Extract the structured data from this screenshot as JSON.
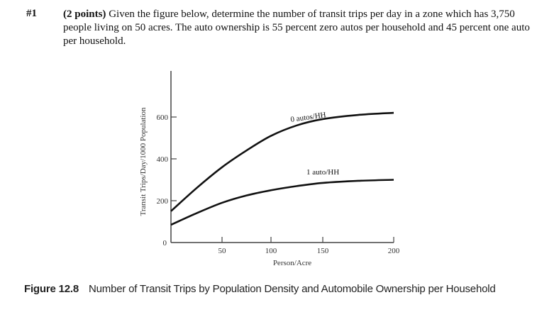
{
  "question": {
    "number": "#1",
    "points": "(2 points)",
    "text": " Given the figure below, determine the number of transit trips per day in a zone which has 3,750 people living on 50 acres.  The auto ownership is 55 percent zero autos per household and 45 percent one auto per household."
  },
  "caption": {
    "figure_label": "Figure 12.8",
    "text": "Number of Transit Trips by Population Density and Automobile Ownership per Household"
  },
  "chart_data": {
    "type": "line",
    "title": "Number of Transit Trips by Population Density and Automobile Ownership per Household",
    "xlabel": "Person/Acre",
    "ylabel": "Transit Trips/Day/1000 Population",
    "xlim": [
      0,
      200
    ],
    "ylim": [
      0,
      700
    ],
    "xticks": [
      50,
      100,
      150,
      200
    ],
    "yticks": [
      0,
      200,
      400,
      600
    ],
    "grid": false,
    "legend": "inline labels above curves",
    "x": [
      0,
      25,
      50,
      75,
      100,
      125,
      150,
      175,
      200
    ],
    "series": [
      {
        "name": "0 autos/HH",
        "values": [
          150,
          260,
          360,
          440,
          510,
          560,
          590,
          610,
          620
        ]
      },
      {
        "name": "1 auto/HH",
        "values": [
          85,
          140,
          190,
          225,
          250,
          270,
          285,
          295,
          300
        ]
      }
    ]
  }
}
